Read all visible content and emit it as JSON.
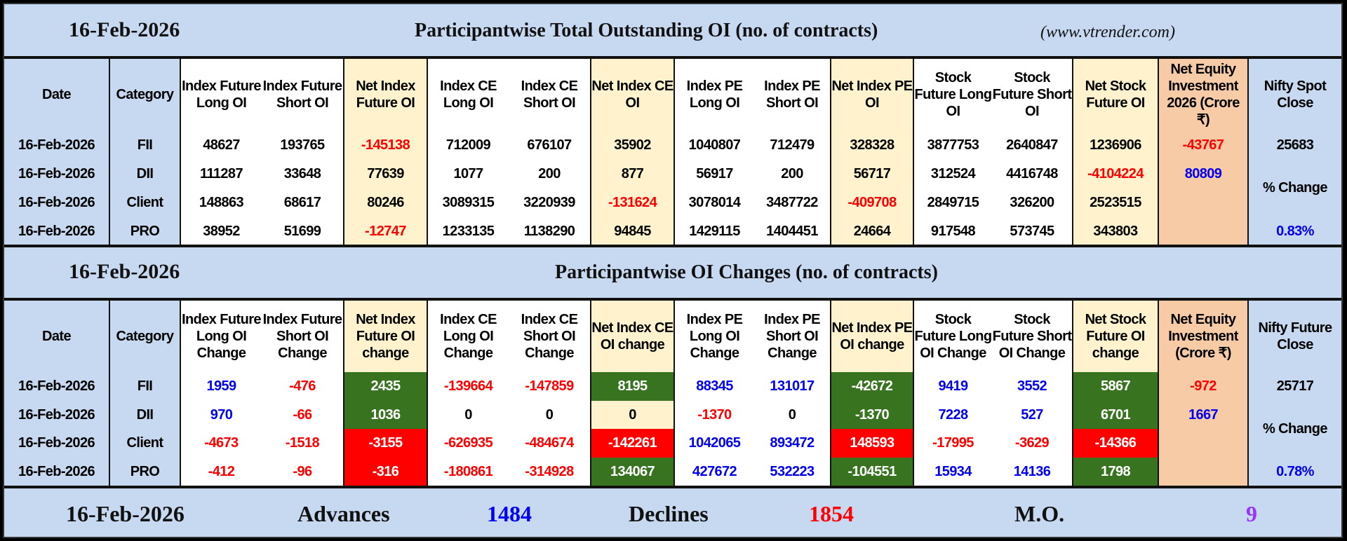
{
  "palette": {
    "light_blue": "#c6d9f1",
    "cream": "#fff2cc",
    "orange": "#f8cba7",
    "green": "#38731f",
    "red": "#ff0000",
    "blue": "#0000ee",
    "purple": "#9933ff"
  },
  "sections": [
    {
      "date": "16-Feb-2026",
      "title": "Participantwise Total Outstanding OI (no. of contracts)",
      "source": "(www.vtrender.com)",
      "headers": [
        "Date",
        "Category",
        "Index Future Long OI",
        "Index Future Short OI",
        "Net Index Future OI",
        "Index CE Long OI",
        "Index CE Short OI",
        "Net Index CE OI",
        "Index PE Long OI",
        "Index PE Short OI",
        "Net Index PE OI",
        "Stock Future Long OI",
        "Stock Future Short OI",
        "Net Stock Future OI",
        "Net Equity Investment 2026 (Crore ₹)",
        "Nifty Spot Close"
      ],
      "rows": [
        {
          "date": "16-Feb-2026",
          "category": "FII",
          "cells": [
            {
              "v": "48627"
            },
            {
              "v": "193765"
            },
            {
              "v": "-145138",
              "c": "red"
            },
            {
              "v": "712009"
            },
            {
              "v": "676107"
            },
            {
              "v": "35902"
            },
            {
              "v": "1040807"
            },
            {
              "v": "712479"
            },
            {
              "v": "328328"
            },
            {
              "v": "3877753"
            },
            {
              "v": "2640847"
            },
            {
              "v": "1236906"
            }
          ]
        },
        {
          "date": "16-Feb-2026",
          "category": "DII",
          "cells": [
            {
              "v": "111287"
            },
            {
              "v": "33648"
            },
            {
              "v": "77639"
            },
            {
              "v": "1077"
            },
            {
              "v": "200"
            },
            {
              "v": "877"
            },
            {
              "v": "56917"
            },
            {
              "v": "200"
            },
            {
              "v": "56717"
            },
            {
              "v": "312524"
            },
            {
              "v": "4416748"
            },
            {
              "v": "-4104224",
              "c": "red"
            }
          ]
        },
        {
          "date": "16-Feb-2026",
          "category": "Client",
          "cells": [
            {
              "v": "148863"
            },
            {
              "v": "68617"
            },
            {
              "v": "80246"
            },
            {
              "v": "3089315"
            },
            {
              "v": "3220939"
            },
            {
              "v": "-131624",
              "c": "red"
            },
            {
              "v": "3078014"
            },
            {
              "v": "3487722"
            },
            {
              "v": "-409708",
              "c": "red"
            },
            {
              "v": "2849715"
            },
            {
              "v": "326200"
            },
            {
              "v": "2523515"
            }
          ]
        },
        {
          "date": "16-Feb-2026",
          "category": "PRO",
          "cells": [
            {
              "v": "38952"
            },
            {
              "v": "51699"
            },
            {
              "v": "-12747",
              "c": "red"
            },
            {
              "v": "1233135"
            },
            {
              "v": "1138290"
            },
            {
              "v": "94845"
            },
            {
              "v": "1429115"
            },
            {
              "v": "1404451"
            },
            {
              "v": "24664"
            },
            {
              "v": "917548"
            },
            {
              "v": "573745"
            },
            {
              "v": "343803"
            }
          ]
        }
      ],
      "equity": [
        {
          "v": "-43767",
          "c": "red"
        },
        {
          "v": "80809",
          "c": "blue"
        }
      ],
      "nifty": {
        "close": "25683",
        "change_label": "% Change",
        "change": "0.83%"
      }
    },
    {
      "date": "16-Feb-2026",
      "title": "Participantwise OI Changes (no. of contracts)",
      "source": "",
      "headers": [
        "Date",
        "Category",
        "Index Future Long OI Change",
        "Index Future Short OI Change",
        "Net Index Future OI change",
        "Index CE Long OI Change",
        "Index CE Short OI Change",
        "Net Index CE OI change",
        "Index PE Long OI Change",
        "Index PE Short OI Change",
        "Net Index PE OI change",
        "Stock Future Long OI Change",
        "Stock Future Short OI Change",
        "Net Stock Future OI change",
        "Net Equity Investment (Crore ₹)",
        "Nifty Future Close"
      ],
      "rows": [
        {
          "date": "16-Feb-2026",
          "category": "FII",
          "cells": [
            {
              "v": "1959",
              "c": "blue"
            },
            {
              "v": "-476",
              "c": "red"
            },
            {
              "v": "2435",
              "c": "white",
              "bg": "green"
            },
            {
              "v": "-139664",
              "c": "red"
            },
            {
              "v": "-147859",
              "c": "red"
            },
            {
              "v": "8195",
              "c": "white",
              "bg": "green"
            },
            {
              "v": "88345",
              "c": "blue"
            },
            {
              "v": "131017",
              "c": "blue"
            },
            {
              "v": "-42672",
              "c": "white",
              "bg": "green"
            },
            {
              "v": "9419",
              "c": "blue"
            },
            {
              "v": "3552",
              "c": "blue"
            },
            {
              "v": "5867",
              "c": "white",
              "bg": "green"
            }
          ]
        },
        {
          "date": "16-Feb-2026",
          "category": "DII",
          "cells": [
            {
              "v": "970",
              "c": "blue"
            },
            {
              "v": "-66",
              "c": "red"
            },
            {
              "v": "1036",
              "c": "white",
              "bg": "green"
            },
            {
              "v": "0"
            },
            {
              "v": "0"
            },
            {
              "v": "0"
            },
            {
              "v": "-1370",
              "c": "red"
            },
            {
              "v": "0"
            },
            {
              "v": "-1370",
              "c": "white",
              "bg": "green"
            },
            {
              "v": "7228",
              "c": "blue"
            },
            {
              "v": "527",
              "c": "blue"
            },
            {
              "v": "6701",
              "c": "white",
              "bg": "green"
            }
          ]
        },
        {
          "date": "16-Feb-2026",
          "category": "Client",
          "cells": [
            {
              "v": "-4673",
              "c": "red"
            },
            {
              "v": "-1518",
              "c": "red"
            },
            {
              "v": "-3155",
              "c": "white",
              "bg": "red"
            },
            {
              "v": "-626935",
              "c": "red"
            },
            {
              "v": "-484674",
              "c": "red"
            },
            {
              "v": "-142261",
              "c": "white",
              "bg": "red"
            },
            {
              "v": "1042065",
              "c": "blue"
            },
            {
              "v": "893472",
              "c": "blue"
            },
            {
              "v": "148593",
              "c": "white",
              "bg": "red"
            },
            {
              "v": "-17995",
              "c": "red"
            },
            {
              "v": "-3629",
              "c": "red"
            },
            {
              "v": "-14366",
              "c": "white",
              "bg": "red"
            }
          ]
        },
        {
          "date": "16-Feb-2026",
          "category": "PRO",
          "cells": [
            {
              "v": "-412",
              "c": "red"
            },
            {
              "v": "-96",
              "c": "red"
            },
            {
              "v": "-316",
              "c": "white",
              "bg": "red"
            },
            {
              "v": "-180861",
              "c": "red"
            },
            {
              "v": "-314928",
              "c": "red"
            },
            {
              "v": "134067",
              "c": "white",
              "bg": "green"
            },
            {
              "v": "427672",
              "c": "blue"
            },
            {
              "v": "532223",
              "c": "blue"
            },
            {
              "v": "-104551",
              "c": "white",
              "bg": "green"
            },
            {
              "v": "15934",
              "c": "blue"
            },
            {
              "v": "14136",
              "c": "blue"
            },
            {
              "v": "1798",
              "c": "white",
              "bg": "green"
            }
          ]
        }
      ],
      "equity": [
        {
          "v": "-972",
          "c": "red"
        },
        {
          "v": "1667",
          "c": "blue"
        }
      ],
      "nifty": {
        "close": "25717",
        "change_label": "% Change",
        "change": "0.78%"
      }
    }
  ],
  "footer": {
    "date": "16-Feb-2026",
    "advances_label": "Advances",
    "advances": "1484",
    "declines_label": "Declines",
    "declines": "1854",
    "mo_label": "M.O.",
    "mo": "9"
  }
}
